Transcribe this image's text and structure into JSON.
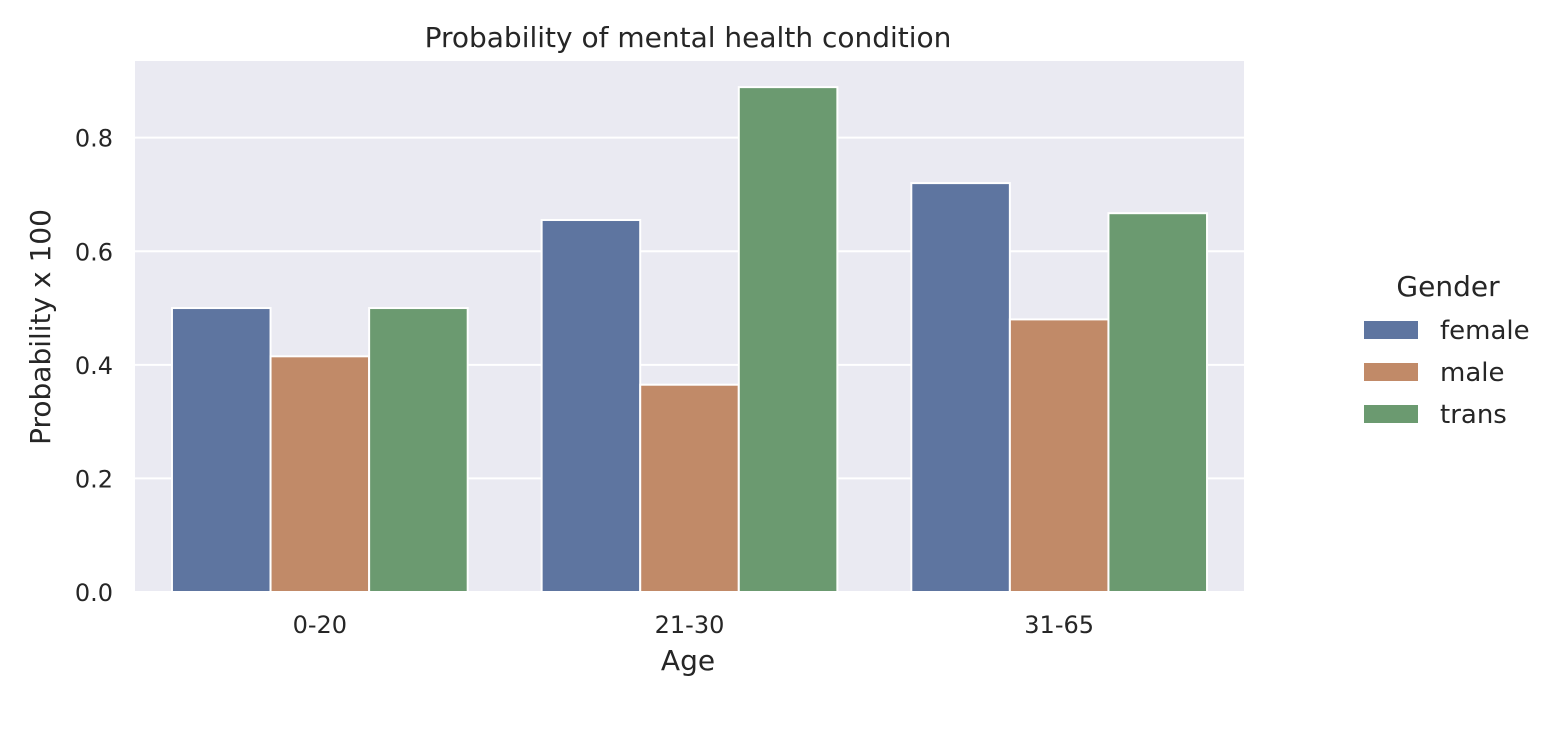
{
  "chart_data": {
    "type": "bar",
    "title": "Probability of mental health condition",
    "xlabel": "Age",
    "ylabel": "Probability x 100",
    "categories": [
      "0-20",
      "21-30",
      "31-65"
    ],
    "series": [
      {
        "name": "female",
        "values": [
          0.5,
          0.655,
          0.72
        ],
        "color": "#5e75a0"
      },
      {
        "name": "male",
        "values": [
          0.415,
          0.365,
          0.48
        ],
        "color": "#c18a68"
      },
      {
        "name": "trans",
        "values": [
          0.5,
          0.889,
          0.667
        ],
        "color": "#6b9a70"
      }
    ],
    "ylim": [
      0,
      0.935
    ],
    "yticks": [
      "0.0",
      "0.2",
      "0.4",
      "0.6",
      "0.8"
    ],
    "grid": true,
    "legend": {
      "title": "Gender",
      "placement": "right"
    },
    "colors": {
      "plot_background": "#eaeaf2",
      "grid": "#ffffff"
    }
  }
}
